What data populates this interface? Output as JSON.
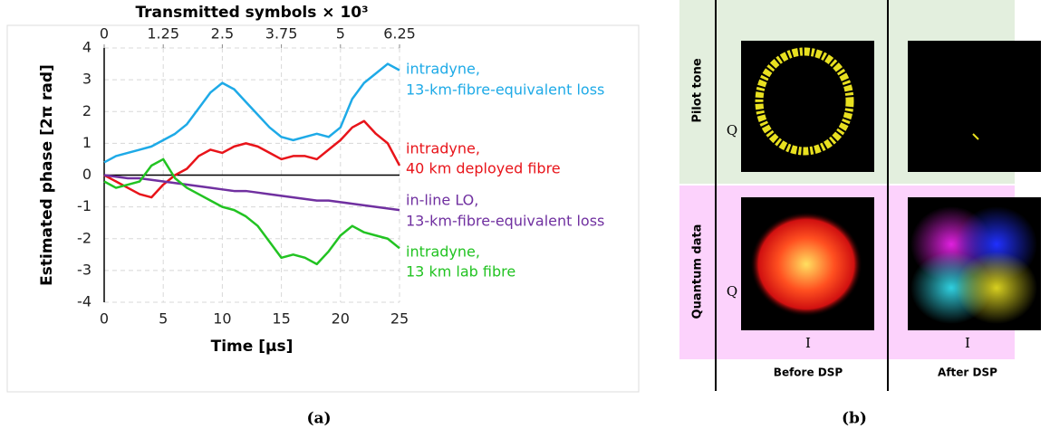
{
  "chart_data": {
    "type": "line",
    "title": "Transmitted symbols × 10³",
    "xlabel": "Time [µs]",
    "ylabel": "Estimated phase [2π rad]",
    "x": [
      0,
      1,
      2,
      3,
      4,
      5,
      6,
      7,
      8,
      9,
      10,
      11,
      12,
      13,
      14,
      15,
      16,
      17,
      18,
      19,
      20,
      21,
      22,
      23,
      24,
      25
    ],
    "xlim": [
      0,
      25
    ],
    "xticks": [
      0,
      5,
      10,
      15,
      20,
      25
    ],
    "x2lim": [
      0,
      6.25
    ],
    "x2ticks": [
      0,
      1.25,
      2.5,
      3.75,
      5,
      6.25
    ],
    "ylim": [
      -4,
      4
    ],
    "yticks": [
      -4,
      -3,
      -2,
      -1,
      0,
      1,
      2,
      3,
      4
    ],
    "grid": true,
    "series": [
      {
        "name": [
          "intradyne,",
          "13-km-fibre-equivalent loss"
        ],
        "color": "#1eaae7",
        "values": [
          0.4,
          0.6,
          0.7,
          0.8,
          0.9,
          1.1,
          1.3,
          1.6,
          2.1,
          2.6,
          2.9,
          2.7,
          2.3,
          1.9,
          1.5,
          1.2,
          1.1,
          1.2,
          1.3,
          1.2,
          1.5,
          2.4,
          2.9,
          3.2,
          3.5,
          3.3
        ]
      },
      {
        "name": [
          "intradyne,",
          "40 km deployed fibre"
        ],
        "color": "#e8141a",
        "values": [
          0,
          -0.2,
          -0.4,
          -0.6,
          -0.7,
          -0.3,
          0,
          0.2,
          0.6,
          0.8,
          0.7,
          0.9,
          1.0,
          0.9,
          0.7,
          0.5,
          0.6,
          0.6,
          0.5,
          0.8,
          1.1,
          1.5,
          1.7,
          1.3,
          1.0,
          0.3
        ]
      },
      {
        "name": [
          "in-line LO,",
          "13-km-fibre-equivalent loss"
        ],
        "color": "#7030a0",
        "values": [
          0,
          -0.05,
          -0.1,
          -0.1,
          -0.15,
          -0.2,
          -0.25,
          -0.3,
          -0.35,
          -0.4,
          -0.45,
          -0.5,
          -0.5,
          -0.55,
          -0.6,
          -0.65,
          -0.7,
          -0.75,
          -0.8,
          -0.8,
          -0.85,
          -0.9,
          -0.95,
          -1.0,
          -1.05,
          -1.1
        ]
      },
      {
        "name": [
          "intradyne,",
          "13 km lab fibre"
        ],
        "color": "#22c322",
        "values": [
          -0.2,
          -0.4,
          -0.3,
          -0.2,
          0.3,
          0.5,
          -0.1,
          -0.4,
          -0.6,
          -0.8,
          -1.0,
          -1.1,
          -1.3,
          -1.6,
          -2.1,
          -2.6,
          -2.5,
          -2.6,
          -2.8,
          -2.4,
          -1.9,
          -1.6,
          -1.8,
          -1.9,
          -2.0,
          -2.3
        ]
      }
    ]
  },
  "panel_b": {
    "row_labels": [
      "Pilot tone",
      "Quantum data"
    ],
    "column_labels": [
      "Before DSP",
      "After DSP"
    ],
    "q_label": "Q",
    "i_label": "I"
  },
  "captions": [
    "(a)",
    "(b)"
  ]
}
